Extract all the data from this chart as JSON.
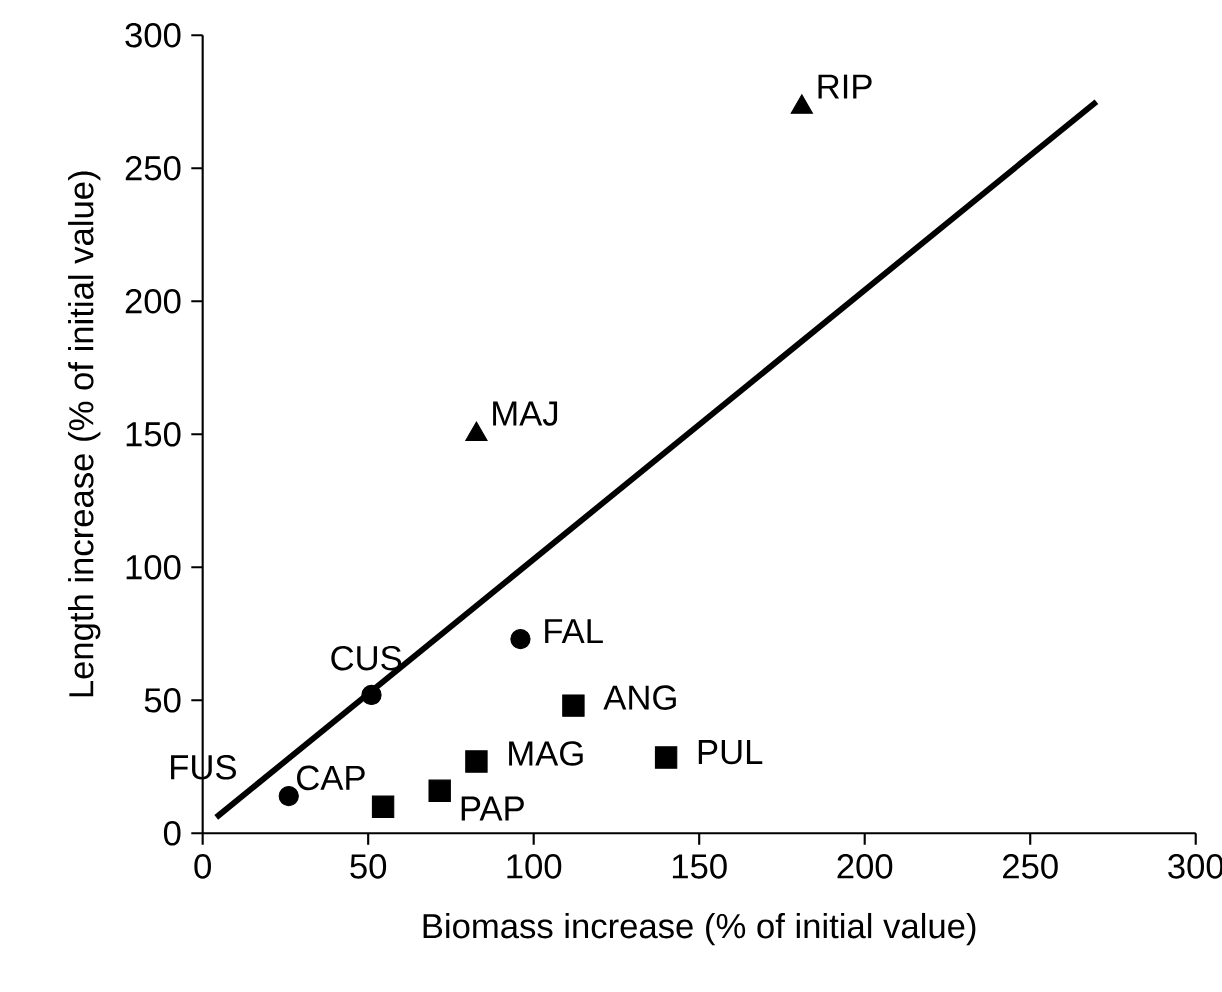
{
  "chart_data": {
    "type": "scatter",
    "xlabel": "Biomass increase (% of initial value)",
    "ylabel": "Length increase (% of initial value)",
    "xlim": [
      0,
      300
    ],
    "ylim": [
      0,
      300
    ],
    "xticks": [
      0,
      50,
      100,
      150,
      200,
      250,
      300
    ],
    "yticks": [
      0,
      50,
      100,
      150,
      200,
      250,
      300
    ],
    "grid": false,
    "series": [
      {
        "marker": "circle",
        "color": "#000000",
        "x": [
          26,
          51,
          96
        ],
        "values": [
          14,
          52,
          73
        ]
      },
      {
        "marker": "square",
        "color": "#000000",
        "x": [
          54.5,
          71.6,
          82.7,
          112,
          140
        ],
        "values": [
          10,
          16,
          27,
          48,
          28.5
        ]
      },
      {
        "marker": "triangle",
        "color": "#000000",
        "x": [
          82.7,
          181
        ],
        "values": [
          150,
          273
        ]
      },
      {
        "type": "line",
        "marker": "none",
        "line_style": "solid",
        "color": "#000000",
        "x": [
          4.1,
          270
        ],
        "values": [
          6,
          275
        ]
      }
    ],
    "annotations": [
      {
        "text": "FUS",
        "x": 26,
        "y": 14
      },
      {
        "text": "CUS",
        "x": 51,
        "y": 52
      },
      {
        "text": "FAL",
        "x": 96,
        "y": 73
      },
      {
        "text": "CAP",
        "x": 54.5,
        "y": 10
      },
      {
        "text": "PAP",
        "x": 71.6,
        "y": 16
      },
      {
        "text": "MAG",
        "x": 82.7,
        "y": 27
      },
      {
        "text": "ANG",
        "x": 112,
        "y": 48
      },
      {
        "text": "PUL",
        "x": 140,
        "y": 28.5
      },
      {
        "text": "MAJ",
        "x": 82.7,
        "y": 150
      },
      {
        "text": "RIP",
        "x": 181,
        "y": 273
      }
    ]
  }
}
